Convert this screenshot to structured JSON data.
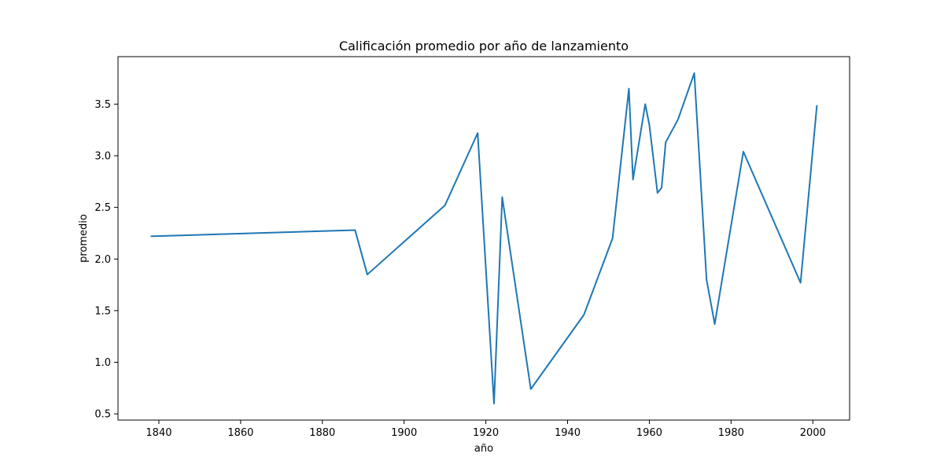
{
  "chart_data": {
    "type": "line",
    "title": "Calificación promedio por año de lanzamiento",
    "xlabel": "año",
    "ylabel": "promedio",
    "xlim": [
      1830,
      2009
    ],
    "ylim": [
      0.44,
      3.96
    ],
    "xticks": [
      1840,
      1860,
      1880,
      1900,
      1920,
      1940,
      1960,
      1980,
      2000
    ],
    "yticks": [
      0.5,
      1.0,
      1.5,
      2.0,
      2.5,
      3.0,
      3.5
    ],
    "ytick_labels": [
      "0.5",
      "1.0",
      "1.5",
      "2.0",
      "2.5",
      "3.0",
      "3.5"
    ],
    "grid": false,
    "series": [
      {
        "color": "#1f77b4",
        "x": [
          1838,
          1888,
          1891,
          1910,
          1918,
          1922,
          1924,
          1931,
          1944,
          1951,
          1955,
          1956,
          1959,
          1960,
          1962,
          1963,
          1964,
          1967,
          1971,
          1974,
          1976,
          1983,
          1997,
          2001
        ],
        "y": [
          2.22,
          2.28,
          1.85,
          2.52,
          3.22,
          0.6,
          2.6,
          0.74,
          1.46,
          2.2,
          3.65,
          2.77,
          3.5,
          3.3,
          2.64,
          2.69,
          3.13,
          3.35,
          3.8,
          1.8,
          1.37,
          3.04,
          1.77,
          3.49
        ]
      }
    ]
  }
}
